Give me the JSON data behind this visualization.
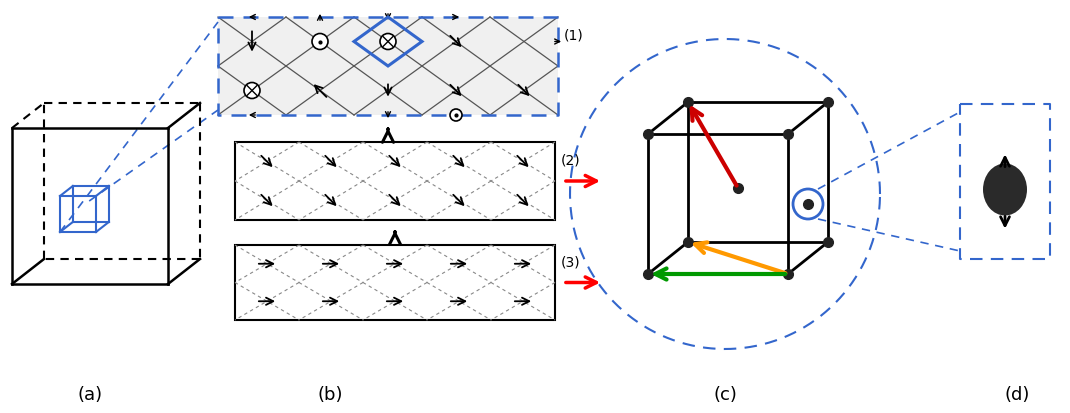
{
  "bg_color": "#ffffff",
  "label_a": "(a)",
  "label_b": "(b)",
  "label_c": "(c)",
  "label_d": "(d)",
  "blue": "#3366cc",
  "black": "#000000",
  "red": "#dd0000",
  "orange": "#ff9900",
  "green": "#009900",
  "darkred": "#aa0000",
  "node_color": "#222222",
  "atom_color": "#2a2a2a"
}
